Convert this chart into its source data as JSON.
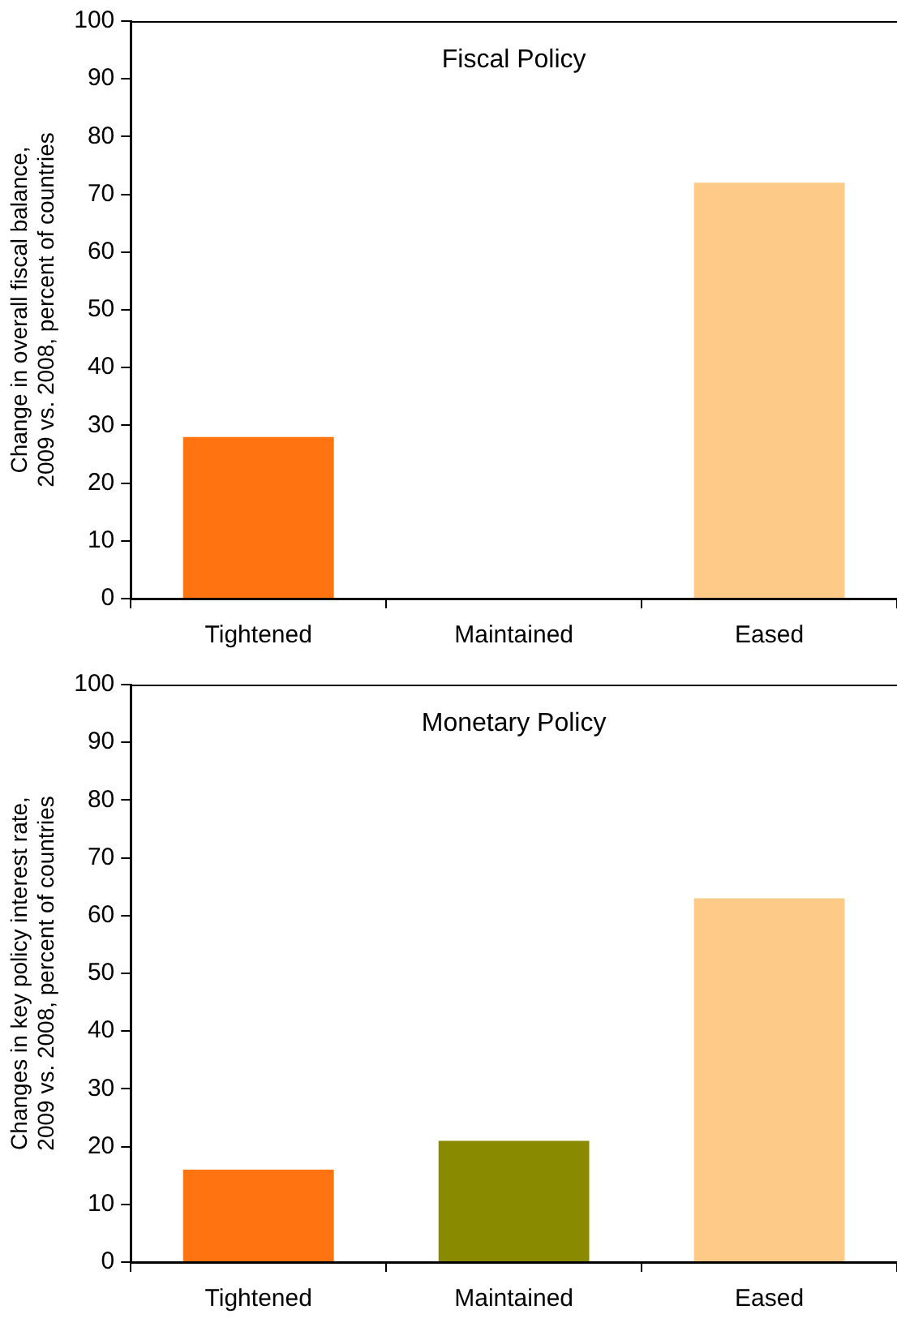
{
  "chart_data": [
    {
      "type": "bar",
      "title": "Fiscal Policy",
      "ylabel": "Change in overall fiscal balance,\n2009 vs. 2008, percent of countries",
      "categories": [
        "Tightened",
        "Maintained",
        "Eased"
      ],
      "values": [
        28,
        0,
        72
      ],
      "colors": [
        "#ff7311",
        "#8a8a00",
        "#fdcb87"
      ],
      "ylim": [
        0,
        100
      ],
      "yticks": [
        0,
        10,
        20,
        30,
        40,
        50,
        60,
        70,
        80,
        90,
        100
      ],
      "grid": false,
      "legend": false
    },
    {
      "type": "bar",
      "title": "Monetary Policy",
      "ylabel": "Changes in key policy interest rate,\n2009 vs. 2008, percent of countries",
      "categories": [
        "Tightened",
        "Maintained",
        "Eased"
      ],
      "values": [
        16,
        21,
        63
      ],
      "colors": [
        "#ff7311",
        "#8a8a00",
        "#fdcb87"
      ],
      "ylim": [
        0,
        100
      ],
      "yticks": [
        0,
        10,
        20,
        30,
        40,
        50,
        60,
        70,
        80,
        90,
        100
      ],
      "grid": false,
      "legend": false
    }
  ]
}
